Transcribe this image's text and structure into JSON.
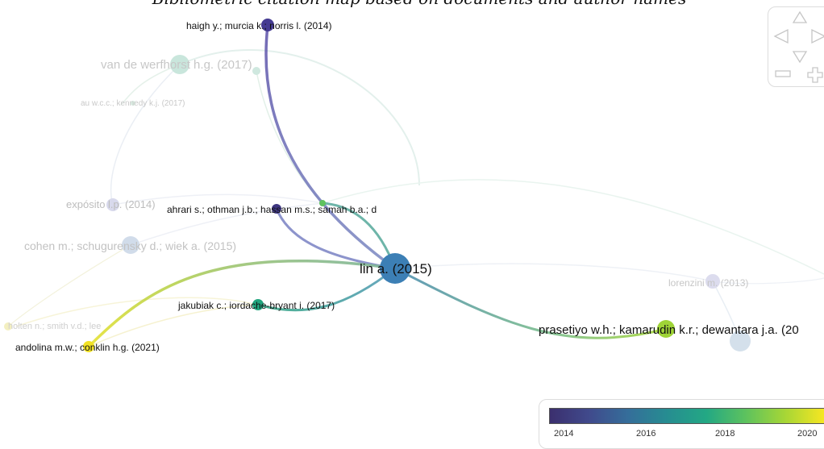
{
  "title": "Bibliometric citation map based on documents and author names",
  "nodes": {
    "lin": "lin a. (2015)",
    "haigh": "haigh y.; murcia k.; norris l. (2014)",
    "vandewerfhorst": "van de werfhorst h.g. (2017)",
    "au": "au w.c.c.; kennedy k.j. (2017)",
    "exposito": "expósito l.p. (2014)",
    "ahrari": "ahrari s.; othman j.b.; hassan m.s.; samah b.a.; d",
    "cohen": "cohen m.; schugurensky d.; wiek a. (2015)",
    "jakubiak": "jakubiak c.; iordache-bryant i. (2017)",
    "holten": "holten n.; smith v.d.; lee",
    "andolina": "andolina m.w.; conklin h.g. (2021)",
    "prasetiyo": "prasetiyo w.h.; kamarudin k.r.; dewantara j.a. (20",
    "lorenzini": "lorenzini m. (2013)"
  },
  "legend": {
    "ticks": [
      "2014",
      "2016",
      "2018",
      "2020"
    ],
    "colors": [
      "#3b2f6e",
      "#23a884",
      "#f6e622"
    ]
  },
  "navigator": {
    "icons": [
      "arrow-up-icon",
      "arrow-left-icon",
      "arrow-right-icon",
      "arrow-down-icon",
      "zoom-out-icon",
      "zoom-in-icon"
    ]
  }
}
